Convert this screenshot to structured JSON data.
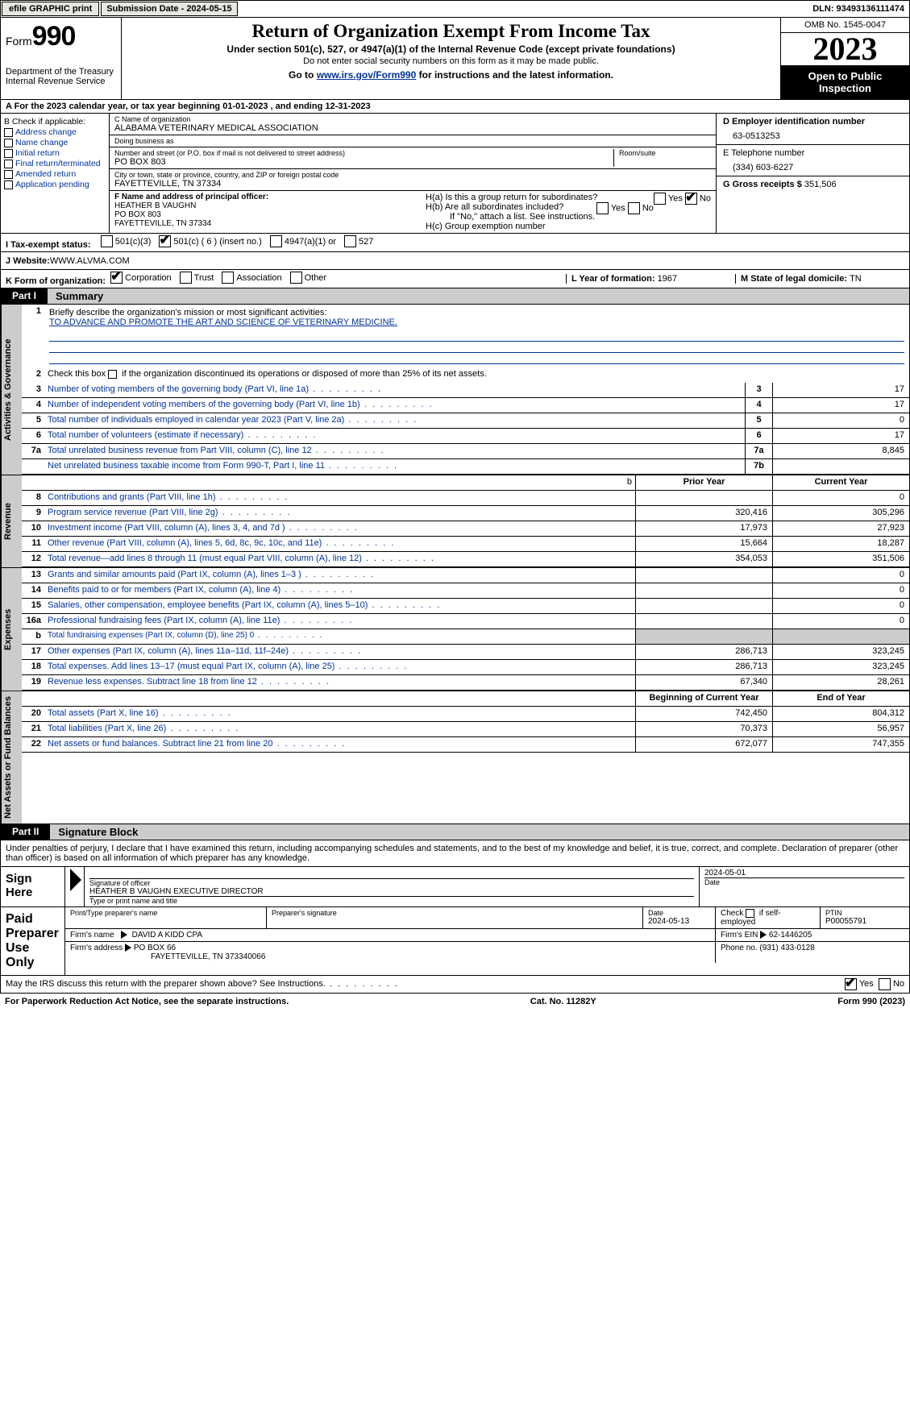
{
  "topbar": {
    "efile_label": "efile GRAPHIC print",
    "submission_label": "Submission Date - 2024-05-15",
    "dln_label": "DLN: 93493136111474"
  },
  "header": {
    "form_word": "Form",
    "form_num": "990",
    "dept": "Department of the Treasury Internal Revenue Service",
    "title": "Return of Organization Exempt From Income Tax",
    "sub": "Under section 501(c), 527, or 4947(a)(1) of the Internal Revenue Code (except private foundations)",
    "sub2": "Do not enter social security numbers on this form as it may be made public.",
    "go_prefix": "Go to ",
    "go_link": "www.irs.gov/Form990",
    "go_suffix": " for instructions and the latest information.",
    "omb": "OMB No. 1545-0047",
    "year": "2023",
    "open": "Open to Public Inspection"
  },
  "period": "For the 2023 calendar year, or tax year beginning 01-01-2023    , and ending 12-31-2023",
  "sectionB": {
    "header": "B Check if applicable:",
    "items": [
      "Address change",
      "Name change",
      "Initial return",
      "Final return/terminated",
      "Amended return",
      "Application pending"
    ]
  },
  "sectionC": {
    "name_lbl": "C Name of organization",
    "name": "ALABAMA VETERINARY MEDICAL ASSOCIATION",
    "dba_lbl": "Doing business as",
    "dba": "",
    "street_lbl": "Number and street (or P.O. box if mail is not delivered to street address)",
    "street": "PO BOX 803",
    "room_lbl": "Room/suite",
    "city_lbl": "City or town, state or province, country, and ZIP or foreign postal code",
    "city": "FAYETTEVILLE, TN  37334"
  },
  "sectionD": {
    "ein_lbl": "D Employer identification number",
    "ein": "63-0513253",
    "phone_lbl": "E Telephone number",
    "phone": "(334) 603-6227",
    "gross_lbl": "G Gross receipts $",
    "gross": "351,506"
  },
  "sectionF": {
    "lbl": "F  Name and address of principal officer:",
    "name": "HEATHER B VAUGHN",
    "addr1": "PO BOX 803",
    "addr2": "FAYETTEVILLE, TN  37334"
  },
  "sectionH": {
    "a": "H(a)  Is this a group return for subordinates?",
    "b": "H(b)  Are all subordinates included?",
    "b_note": "If \"No,\" attach a list. See instructions.",
    "c": "H(c)  Group exemption number",
    "yes": "Yes",
    "no": "No"
  },
  "sectionI": {
    "lbl": "I   Tax-exempt status:",
    "opts": [
      "501(c)(3)",
      "501(c) ( 6 ) (insert no.)",
      "4947(a)(1) or",
      "527"
    ],
    "checked_idx": 1
  },
  "sectionJ": {
    "lbl": "J   Website:",
    "val": " WWW.ALVMA.COM"
  },
  "sectionK": {
    "lbl": "K Form of organization:",
    "opts": [
      "Corporation",
      "Trust",
      "Association",
      "Other"
    ],
    "checked_idx": 0
  },
  "sectionL": {
    "lbl": "L Year of formation: ",
    "val": "1967"
  },
  "sectionM": {
    "lbl": "M State of legal domicile: ",
    "val": "TN"
  },
  "parts": {
    "p1_tag": "Part I",
    "p1_name": "Summary",
    "p2_tag": "Part II",
    "p2_name": "Signature Block"
  },
  "summary": {
    "tabs": [
      "Activities & Governance",
      "Revenue",
      "Expenses",
      "Net Assets or Fund Balances"
    ],
    "line1_lbl": "Briefly describe the organization's mission or most significant activities:",
    "line1_val": "TO ADVANCE AND PROMOTE THE ART AND SCIENCE OF VETERINARY MEDICINE.",
    "line2": "Check this box       if the organization discontinued its operations or disposed of more than 25% of its net assets.",
    "rows_gov": [
      {
        "n": "3",
        "d": "Number of voting members of the governing body (Part VI, line 1a)",
        "box": "3",
        "v": "17"
      },
      {
        "n": "4",
        "d": "Number of independent voting members of the governing body (Part VI, line 1b)",
        "box": "4",
        "v": "17"
      },
      {
        "n": "5",
        "d": "Total number of individuals employed in calendar year 2023 (Part V, line 2a)",
        "box": "5",
        "v": "0"
      },
      {
        "n": "6",
        "d": "Total number of volunteers (estimate if necessary)",
        "box": "6",
        "v": "17"
      },
      {
        "n": "7a",
        "d": "Total unrelated business revenue from Part VIII, column (C), line 12",
        "box": "7a",
        "v": "8,845"
      },
      {
        "n": "",
        "d": "Net unrelated business taxable income from Form 990-T, Part I, line 11",
        "box": "7b",
        "v": ""
      }
    ],
    "col_hdr_prior": "Prior Year",
    "col_hdr_curr": "Current Year",
    "rows_rev": [
      {
        "n": "8",
        "d": "Contributions and grants (Part VIII, line 1h)",
        "p": "",
        "c": "0"
      },
      {
        "n": "9",
        "d": "Program service revenue (Part VIII, line 2g)",
        "p": "320,416",
        "c": "305,296"
      },
      {
        "n": "10",
        "d": "Investment income (Part VIII, column (A), lines 3, 4, and 7d )",
        "p": "17,973",
        "c": "27,923"
      },
      {
        "n": "11",
        "d": "Other revenue (Part VIII, column (A), lines 5, 6d, 8c, 9c, 10c, and 11e)",
        "p": "15,664",
        "c": "18,287"
      },
      {
        "n": "12",
        "d": "Total revenue—add lines 8 through 11 (must equal Part VIII, column (A), line 12)",
        "p": "354,053",
        "c": "351,506"
      }
    ],
    "rows_exp": [
      {
        "n": "13",
        "d": "Grants and similar amounts paid (Part IX, column (A), lines 1–3 )",
        "p": "",
        "c": "0"
      },
      {
        "n": "14",
        "d": "Benefits paid to or for members (Part IX, column (A), line 4)",
        "p": "",
        "c": "0"
      },
      {
        "n": "15",
        "d": "Salaries, other compensation, employee benefits (Part IX, column (A), lines 5–10)",
        "p": "",
        "c": "0"
      },
      {
        "n": "16a",
        "d": "Professional fundraising fees (Part IX, column (A), line 11e)",
        "p": "",
        "c": "0"
      },
      {
        "n": "b",
        "d": "Total fundraising expenses (Part IX, column (D), line 25) 0",
        "p": "grey",
        "c": "grey",
        "small": true
      },
      {
        "n": "17",
        "d": "Other expenses (Part IX, column (A), lines 11a–11d, 11f–24e)",
        "p": "286,713",
        "c": "323,245"
      },
      {
        "n": "18",
        "d": "Total expenses. Add lines 13–17 (must equal Part IX, column (A), line 25)",
        "p": "286,713",
        "c": "323,245"
      },
      {
        "n": "19",
        "d": "Revenue less expenses. Subtract line 18 from line 12",
        "p": "67,340",
        "c": "28,261"
      }
    ],
    "col_hdr_beg": "Beginning of Current Year",
    "col_hdr_end": "End of Year",
    "rows_net": [
      {
        "n": "20",
        "d": "Total assets (Part X, line 16)",
        "p": "742,450",
        "c": "804,312"
      },
      {
        "n": "21",
        "d": "Total liabilities (Part X, line 26)",
        "p": "70,373",
        "c": "56,957"
      },
      {
        "n": "22",
        "d": "Net assets or fund balances. Subtract line 21 from line 20",
        "p": "672,077",
        "c": "747,355"
      }
    ]
  },
  "sig": {
    "intro": "Under penalties of perjury, I declare that I have examined this return, including accompanying schedules and statements, and to the best of my knowledge and belief, it is true, correct, and complete. Declaration of preparer (other than officer) is based on all information of which preparer has any knowledge.",
    "sign_here": "Sign Here",
    "sig_officer_lbl": "Signature of officer",
    "sig_date": "2024-05-01",
    "officer_name": "HEATHER B VAUGHN  EXECUTIVE DIRECTOR",
    "type_lbl": "Type or print name and title",
    "date_lbl": "Date",
    "paid": "Paid Preparer Use Only",
    "prep_name_lbl": "Print/Type preparer's name",
    "prep_sig_lbl": "Preparer's signature",
    "prep_date": "2024-05-13",
    "self_emp": "Check        if self-employed",
    "ptin_lbl": "PTIN",
    "ptin": "P00055791",
    "firm_name_lbl": "Firm's name",
    "firm_name": "DAVID A KIDD CPA",
    "firm_ein_lbl": "Firm's EIN",
    "firm_ein": "62-1446205",
    "firm_addr_lbl": "Firm's address",
    "firm_addr1": "PO BOX 66",
    "firm_addr2": "FAYETTEVILLE, TN  373340066",
    "firm_phone_lbl": "Phone no.",
    "firm_phone": "(931) 433-0128"
  },
  "footer": {
    "discuss": "May the IRS discuss this return with the preparer shown above? See Instructions.",
    "yes": "Yes",
    "no": "No",
    "paperwork": "For Paperwork Reduction Act Notice, see the separate instructions.",
    "cat": "Cat. No. 11282Y",
    "form": "Form 990 (2023)"
  },
  "colors": {
    "link": "#003399",
    "grey": "#cccccc",
    "btn_bg": "#e8e6e0"
  }
}
